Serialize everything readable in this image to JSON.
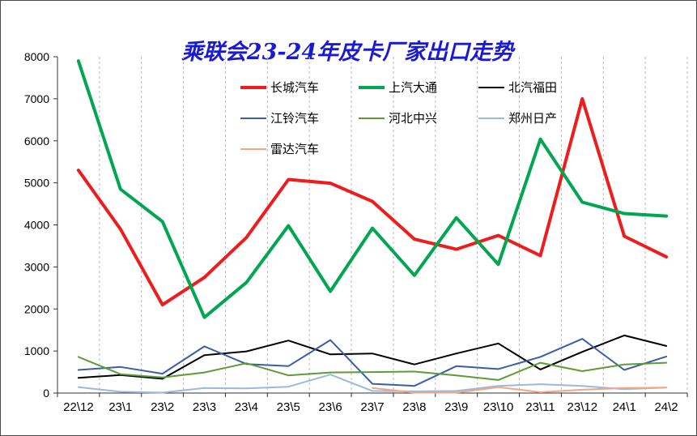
{
  "chart_data": {
    "type": "line",
    "title": "乘联会23-24年皮卡厂家出口走势",
    "xlabel": "",
    "ylabel": "",
    "ylim": [
      0,
      8000
    ],
    "yticks": [
      0,
      1000,
      2000,
      3000,
      4000,
      5000,
      6000,
      7000,
      8000
    ],
    "grid": "vertical",
    "legend_position": "top-center",
    "categories": [
      "22\\12",
      "23\\1",
      "23\\2",
      "23\\3",
      "23\\4",
      "23\\5",
      "23\\6",
      "23\\7",
      "23\\8",
      "23\\9",
      "23\\10",
      "23\\11",
      "23\\12",
      "24\\1",
      "24\\2"
    ],
    "series": [
      {
        "name": "长城汽车",
        "color": "#ee1c1c",
        "width": 4,
        "values": [
          5300,
          3900,
          2100,
          2750,
          3700,
          5080,
          4990,
          4560,
          3660,
          3420,
          3750,
          3270,
          7000,
          3730,
          3240
        ]
      },
      {
        "name": "上汽大通",
        "color": "#00a650",
        "width": 4,
        "values": [
          7900,
          4850,
          4080,
          1800,
          2630,
          3980,
          2420,
          3920,
          2800,
          4170,
          3060,
          6040,
          4540,
          4270,
          4210
        ]
      },
      {
        "name": "北汽福田",
        "color": "#000000",
        "width": 2,
        "values": [
          360,
          430,
          340,
          900,
          990,
          1250,
          920,
          940,
          680,
          940,
          1180,
          560,
          980,
          1370,
          1120
        ]
      },
      {
        "name": "江铃汽车",
        "color": "#3b5ea8",
        "width": 2,
        "values": [
          550,
          620,
          460,
          1110,
          690,
          640,
          1260,
          220,
          170,
          640,
          570,
          860,
          1290,
          550,
          870
        ]
      },
      {
        "name": "河北中兴",
        "color": "#5e9b35",
        "width": 2,
        "values": [
          860,
          450,
          370,
          490,
          710,
          420,
          490,
          500,
          510,
          420,
          310,
          720,
          520,
          680,
          720
        ]
      },
      {
        "name": "郑州日产",
        "color": "#9ab9de",
        "width": 2,
        "values": [
          140,
          30,
          10,
          120,
          110,
          150,
          440,
          50,
          40,
          50,
          170,
          210,
          170,
          90,
          130
        ]
      },
      {
        "name": "雷达汽车",
        "color": "#f4a582",
        "width": 2,
        "values": [
          null,
          null,
          null,
          null,
          null,
          null,
          null,
          120,
          10,
          10,
          140,
          20,
          80,
          120,
          130
        ]
      }
    ]
  }
}
